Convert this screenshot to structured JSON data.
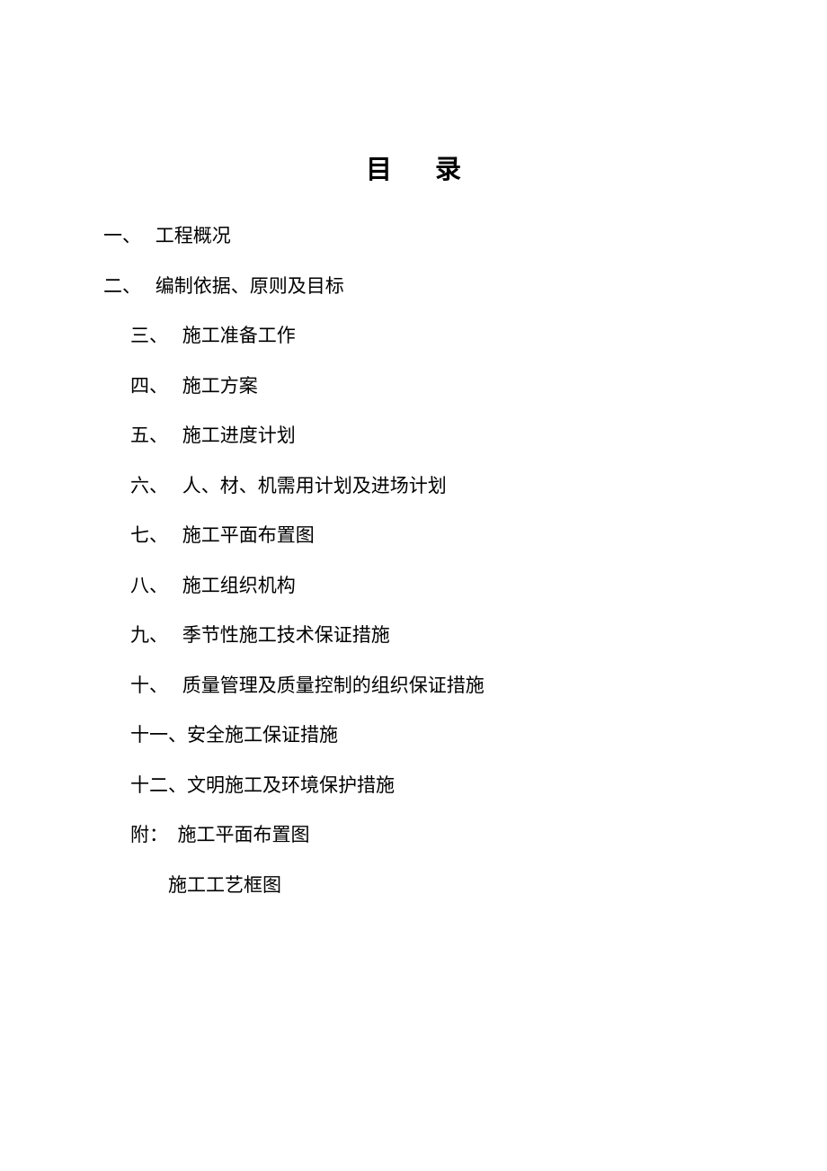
{
  "title": "目录",
  "items": [
    {
      "num": "一、",
      "text": "工程概况",
      "indent": 0,
      "gap": "   "
    },
    {
      "num": "二、",
      "text": "编制依据、原则及目标",
      "indent": 0,
      "gap": "   "
    },
    {
      "num": "三、",
      "text": "施工准备工作",
      "indent": 1,
      "gap": "   "
    },
    {
      "num": "四、",
      "text": "施工方案",
      "indent": 1,
      "gap": "   "
    },
    {
      "num": "五、",
      "text": "施工进度计划",
      "indent": 1,
      "gap": "   "
    },
    {
      "num": "六、",
      "text": "人、材、机需用计划及进场计划",
      "indent": 1,
      "gap": "   "
    },
    {
      "num": "七、",
      "text": "施工平面布置图",
      "indent": 1,
      "gap": "   "
    },
    {
      "num": "八、",
      "text": "施工组织机构",
      "indent": 1,
      "gap": "   "
    },
    {
      "num": "九、",
      "text": "季节性施工技术保证措施",
      "indent": 1,
      "gap": "   "
    },
    {
      "num": "十、",
      "text": "质量管理及质量控制的组织保证措施",
      "indent": 1,
      "gap": "   "
    },
    {
      "num": "十一、",
      "text": "安全施工保证措施",
      "indent": 1,
      "gap": ""
    },
    {
      "num": "十二、",
      "text": "文明施工及环境保护措施",
      "indent": 1,
      "gap": ""
    },
    {
      "num": "附：",
      "text": "施工平面布置图",
      "indent": 1,
      "gap": "  "
    },
    {
      "num": "",
      "text": "施工工艺框图",
      "indent": 2,
      "gap": ""
    }
  ],
  "style": {
    "background_color": "#ffffff",
    "text_color": "#000000",
    "title_fontsize": 29,
    "item_fontsize": 21,
    "font_family": "SimSun"
  }
}
